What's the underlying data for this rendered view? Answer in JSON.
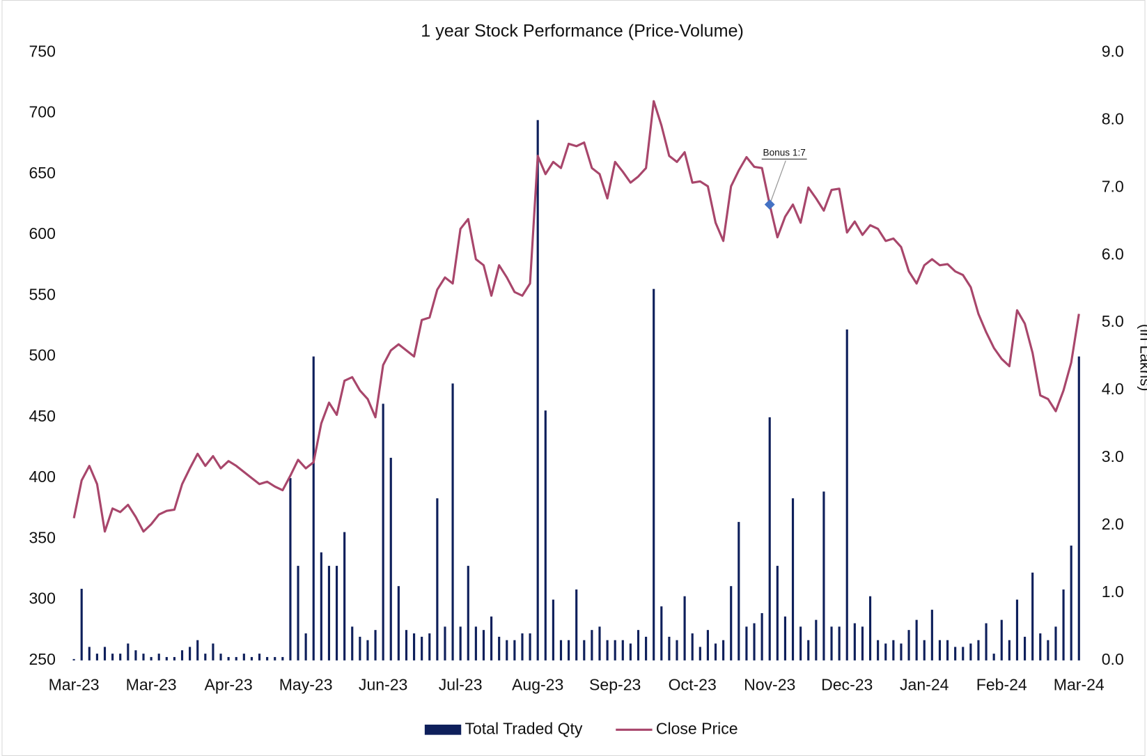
{
  "chart_data": {
    "type": "bar_line",
    "title": "1 year Stock Performance (Price-Volume)",
    "y2_label": "(in Lakhs)",
    "xlim": [
      0,
      130
    ],
    "xticks": [
      {
        "value": 0,
        "label": "Mar-23"
      },
      {
        "value": 10,
        "label": "Mar-23"
      },
      {
        "value": 20,
        "label": "Apr-23"
      },
      {
        "value": 30,
        "label": "May-23"
      },
      {
        "value": 40,
        "label": "Jun-23"
      },
      {
        "value": 50,
        "label": "Jul-23"
      },
      {
        "value": 60,
        "label": "Aug-23"
      },
      {
        "value": 70,
        "label": "Sep-23"
      },
      {
        "value": 80,
        "label": "Oct-23"
      },
      {
        "value": 90,
        "label": "Nov-23"
      },
      {
        "value": 100,
        "label": "Dec-23"
      },
      {
        "value": 110,
        "label": "Jan-24"
      },
      {
        "value": 120,
        "label": "Feb-24"
      },
      {
        "value": 130,
        "label": "Mar-24"
      }
    ],
    "ylim": [
      250,
      750
    ],
    "yticks": [
      250,
      300,
      350,
      400,
      450,
      500,
      550,
      600,
      650,
      700,
      750
    ],
    "y2lim": [
      0,
      9
    ],
    "y2ticks": [
      {
        "value": 0,
        "label": "0.0"
      },
      {
        "value": 1,
        "label": "1.0"
      },
      {
        "value": 2,
        "label": "2.0"
      },
      {
        "value": 3,
        "label": "3.0"
      },
      {
        "value": 4,
        "label": "4.0"
      },
      {
        "value": 5,
        "label": "5.0"
      },
      {
        "value": 6,
        "label": "6.0"
      },
      {
        "value": 7,
        "label": "7.0"
      },
      {
        "value": 8,
        "label": "8.0"
      },
      {
        "value": 9,
        "label": "9.0"
      }
    ],
    "legend": "bottom",
    "series": [
      {
        "name": "Total Traded Qty",
        "type": "bar",
        "axis": "y2",
        "color": "#0e1f5b",
        "values": [
          0.02,
          1.06,
          0.2,
          0.1,
          0.2,
          0.1,
          0.1,
          0.25,
          0.15,
          0.1,
          0.05,
          0.1,
          0.05,
          0.05,
          0.15,
          0.2,
          0.3,
          0.1,
          0.25,
          0.1,
          0.05,
          0.05,
          0.1,
          0.05,
          0.1,
          0.05,
          0.05,
          0.05,
          2.7,
          1.4,
          0.4,
          4.5,
          1.6,
          1.4,
          1.4,
          1.9,
          0.5,
          0.35,
          0.3,
          0.45,
          3.8,
          3.0,
          1.1,
          0.45,
          0.4,
          0.35,
          0.4,
          2.4,
          0.5,
          4.1,
          0.5,
          1.4,
          0.5,
          0.45,
          0.65,
          0.35,
          0.3,
          0.3,
          0.4,
          0.4,
          8.0,
          3.7,
          0.9,
          0.3,
          0.3,
          1.05,
          0.3,
          0.45,
          0.5,
          0.3,
          0.3,
          0.3,
          0.25,
          0.45,
          0.35,
          5.5,
          0.8,
          0.35,
          0.3,
          0.95,
          0.4,
          0.2,
          0.45,
          0.25,
          0.3,
          1.1,
          2.05,
          0.5,
          0.55,
          0.7,
          3.6,
          1.4,
          0.65,
          2.4,
          0.5,
          0.3,
          0.6,
          2.5,
          0.5,
          0.5,
          4.9,
          0.55,
          0.5,
          0.95,
          0.3,
          0.25,
          0.3,
          0.25,
          0.45,
          0.6,
          0.3,
          0.75,
          0.3,
          0.3,
          0.2,
          0.2,
          0.25,
          0.3,
          0.55,
          0.1,
          0.6,
          0.3,
          0.9,
          0.35,
          1.3,
          0.4,
          0.3,
          0.5,
          1.05,
          1.7,
          4.5
        ]
      },
      {
        "name": "Close Price",
        "type": "line",
        "color": "#a8466b",
        "values": [
          367,
          398,
          410,
          395,
          356,
          375,
          372,
          378,
          368,
          356,
          362,
          370,
          373,
          374,
          395,
          408,
          420,
          410,
          418,
          408,
          414,
          410,
          405,
          400,
          395,
          397,
          393,
          390,
          402,
          415,
          408,
          413,
          445,
          462,
          452,
          480,
          483,
          472,
          465,
          450,
          493,
          505,
          510,
          505,
          500,
          530,
          532,
          555,
          565,
          560,
          605,
          613,
          580,
          575,
          550,
          575,
          565,
          553,
          550,
          560,
          665,
          650,
          660,
          655,
          675,
          673,
          676,
          655,
          650,
          630,
          660,
          652,
          643,
          648,
          655,
          710,
          690,
          665,
          660,
          668,
          643,
          644,
          640,
          610,
          595,
          640,
          653,
          664,
          656,
          655,
          625,
          598,
          615,
          625,
          610,
          639,
          630,
          620,
          637,
          638,
          602,
          611,
          600,
          608,
          605,
          595,
          597,
          590,
          570,
          560,
          575,
          580,
          575,
          576,
          570,
          567,
          557,
          535,
          520,
          507,
          498,
          492,
          538,
          527,
          503,
          468,
          465,
          455,
          472,
          495,
          535
        ]
      }
    ],
    "annotation": {
      "text": "Bonus 1:7",
      "x": 90,
      "y": 625,
      "color": "#4472c4"
    }
  }
}
